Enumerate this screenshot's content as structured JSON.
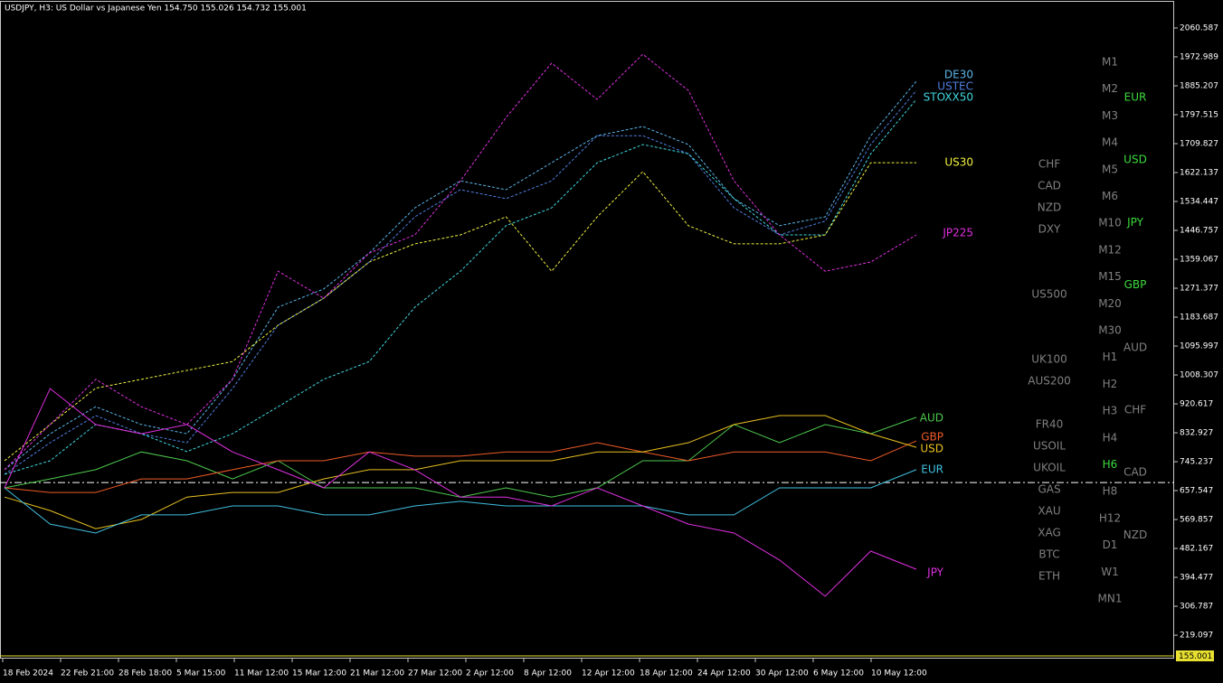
{
  "chart_data": {
    "type": "line",
    "title": "USDJPY, H3:  US Dollar vs Japanese Yen  154.750 155.026 154.732 155.001",
    "price_label": "155.001",
    "x_axis_labels": [
      "18 Feb 2024",
      "22 Feb 21:00",
      "28 Feb 18:00",
      "5 Mar 15:00",
      "11 Mar 12:00",
      "15 Mar 12:00",
      "21 Mar 12:00",
      "27 Mar 12:00",
      "2 Apr 12:00",
      "8 Apr 12:00",
      "12 Apr 12:00",
      "18 Apr 12:00",
      "24 Apr 12:00",
      "30 Apr 12:00",
      "6 May 12:00",
      "10 May 12:00"
    ],
    "ylim": [
      159,
      2140
    ],
    "yticks": [
      2060.587,
      1972.989,
      1885.207,
      1797.515,
      1709.827,
      1622.137,
      1534.447,
      1446.757,
      1359.067,
      1271.377,
      1183.687,
      1095.997,
      1008.307,
      920.617,
      832.927,
      745.237,
      657.547,
      569.857,
      482.167,
      394.477,
      306.787,
      219.097
    ],
    "baseline": 682,
    "series": [
      {
        "name": "DE30",
        "color": "#5ab4e6",
        "dashed": true,
        "values": [
          721,
          830,
          912,
          858,
          830,
          995,
          1214,
          1269,
          1378,
          1515,
          1597,
          1570,
          1652,
          1734,
          1762,
          1707,
          1543,
          1461,
          1488,
          1734,
          1899
        ]
      },
      {
        "name": "USTEC",
        "color": "#4f7fe0",
        "dashed": true,
        "values": [
          707,
          803,
          885,
          830,
          803,
          967,
          1159,
          1241,
          1351,
          1488,
          1570,
          1543,
          1597,
          1734,
          1734,
          1679,
          1515,
          1433,
          1475,
          1707,
          1871
        ]
      },
      {
        "name": "STOXX50",
        "color": "#40d8e0",
        "dashed": true,
        "values": [
          707,
          748,
          858,
          830,
          776,
          830,
          912,
          995,
          1049,
          1214,
          1323,
          1461,
          1515,
          1652,
          1707,
          1679,
          1543,
          1433,
          1433,
          1679,
          1844
        ]
      },
      {
        "name": "US30",
        "color": "#f0f040",
        "dashed": true,
        "values": [
          748,
          858,
          968,
          995,
          1022,
          1049,
          1159,
          1241,
          1351,
          1406,
          1433,
          1488,
          1323,
          1488,
          1625,
          1461,
          1406,
          1406,
          1433,
          1652,
          1652
        ]
      },
      {
        "name": "JP225",
        "color": "#e030e0",
        "dashed": true,
        "values": [
          721,
          858,
          995,
          912,
          858,
          995,
          1323,
          1241,
          1378,
          1433,
          1597,
          1789,
          1954,
          1844,
          1981,
          1871,
          1597,
          1433,
          1323,
          1351,
          1433
        ]
      },
      {
        "name": "AUD",
        "color": "#4ec94e",
        "dashed": false,
        "values": [
          666,
          693,
          721,
          775,
          748,
          693,
          748,
          666,
          666,
          666,
          638,
          666,
          638,
          666,
          748,
          748,
          858,
          803,
          858,
          830,
          880
        ]
      },
      {
        "name": "GBP",
        "color": "#f05a28",
        "dashed": false,
        "values": [
          666,
          652,
          652,
          693,
          693,
          721,
          748,
          748,
          775,
          762,
          762,
          775,
          775,
          803,
          775,
          748,
          775,
          775,
          775,
          748,
          808
        ]
      },
      {
        "name": "USD",
        "color": "#e8c020",
        "dashed": false,
        "values": [
          638,
          597,
          542,
          570,
          638,
          652,
          652,
          693,
          721,
          721,
          748,
          748,
          748,
          775,
          775,
          803,
          858,
          885,
          885,
          830,
          789
        ]
      },
      {
        "name": "EUR",
        "color": "#40c0e0",
        "dashed": false,
        "values": [
          666,
          556,
          529,
          584,
          584,
          611,
          611,
          584,
          584,
          611,
          625,
          611,
          611,
          611,
          611,
          584,
          584,
          666,
          666,
          666,
          721
        ]
      },
      {
        "name": "JPY",
        "color": "#e030e0",
        "dashed": false,
        "values": [
          666,
          967,
          858,
          830,
          858,
          775,
          721,
          666,
          775,
          721,
          638,
          638,
          611,
          666,
          611,
          556,
          529,
          447,
          337,
          474,
          419
        ]
      }
    ]
  },
  "panel": {
    "symbols": [
      "CHF",
      "CAD",
      "NZD",
      "DXY",
      "US500",
      "UK100",
      "AUS200",
      "FR40",
      "USOIL",
      "UKOIL",
      "GAS",
      "XAU",
      "XAG",
      "BTC",
      "ETH"
    ],
    "timeframes": [
      "M1",
      "M2",
      "M3",
      "M4",
      "M5",
      "M6",
      "M10",
      "M12",
      "M15",
      "M20",
      "M30",
      "H1",
      "H2",
      "H3",
      "H4",
      "H6",
      "H8",
      "H12",
      "D1",
      "W1",
      "MN1"
    ],
    "active_timeframe": "H6",
    "currencies": [
      "EUR",
      "USD",
      "JPY",
      "GBP",
      "AUD",
      "CHF",
      "CAD",
      "NZD"
    ],
    "active_currencies": [
      "EUR",
      "USD",
      "JPY",
      "GBP"
    ]
  }
}
